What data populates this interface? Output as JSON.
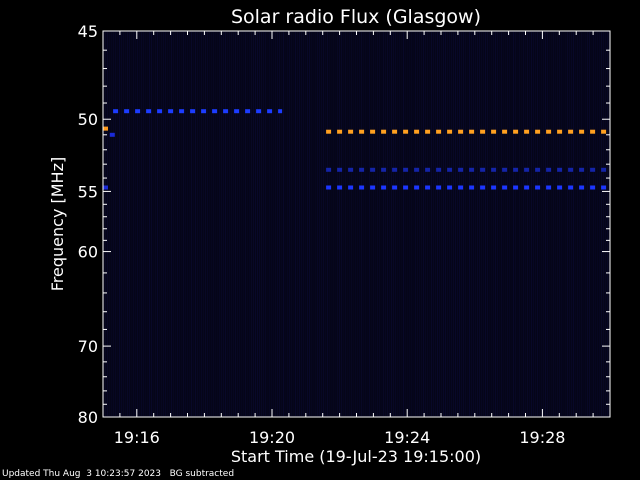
{
  "chart_data": {
    "type": "heatmap",
    "title": "Solar radio Flux (Glasgow)",
    "xlabel": "Start Time (19-Jul-23 19:15:00)",
    "ylabel": "Frequency [MHz]",
    "x_range_min": [
      15.0,
      30.0
    ],
    "y_range_mhz": [
      45,
      80
    ],
    "x_ticks": [
      {
        "label": "19:16",
        "min": 16
      },
      {
        "label": "19:20",
        "min": 20
      },
      {
        "label": "19:24",
        "min": 24
      },
      {
        "label": "19:28",
        "min": 28
      }
    ],
    "y_ticks": [
      45,
      50,
      55,
      60,
      70,
      80
    ],
    "y_scale": "reciprocal",
    "background_color": "#050518",
    "series": [
      {
        "freq_mhz": 49.5,
        "start_min": 15.3,
        "end_min": 20.3,
        "color": "#1c3cff"
      },
      {
        "freq_mhz": 50.6,
        "start_min": 15.0,
        "end_min": 15.2,
        "color": "#ff9a1c"
      },
      {
        "freq_mhz": 51.0,
        "start_min": 15.2,
        "end_min": 15.5,
        "color": "#1a2ad8"
      },
      {
        "freq_mhz": 54.7,
        "start_min": 15.0,
        "end_min": 15.2,
        "color": "#1a2ad8"
      },
      {
        "freq_mhz": 50.8,
        "start_min": 21.6,
        "end_min": 30.0,
        "color": "#ffa020"
      },
      {
        "freq_mhz": 53.4,
        "start_min": 21.6,
        "end_min": 30.0,
        "color": "#1424a8"
      },
      {
        "freq_mhz": 54.7,
        "start_min": 21.6,
        "end_min": 30.0,
        "color": "#1c36ff"
      }
    ]
  },
  "footer": {
    "updated": "Updated Thu Aug  3 10:23:57 2023",
    "note": "BG subtracted"
  }
}
